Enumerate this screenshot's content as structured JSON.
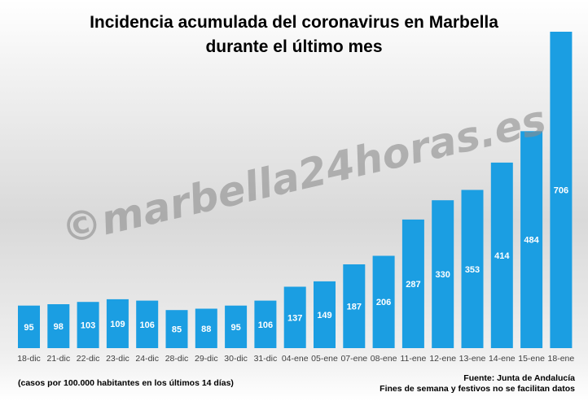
{
  "title": {
    "line1": "Incidencia acumulada del coronavirus en Marbella",
    "line2": "durante el último mes"
  },
  "watermark": "©marbella24horas.es",
  "footer": {
    "note": "(casos por 100.000 habitantes en los últimos 14 días)",
    "source": "Fuente: Junta de Andalucía",
    "note2": "Fines de semana y festivos no se facilitan datos"
  },
  "colors": {
    "bar": "#1b9ee2",
    "bar_label": "#ffffff",
    "tick": "#404040"
  },
  "chart_data": {
    "type": "bar",
    "title": "Incidencia acumulada del coronavirus en Marbella durante el último mes",
    "xlabel": "",
    "ylabel": "",
    "categories": [
      "18-dic",
      "21-dic",
      "22-dic",
      "23-dic",
      "24-dic",
      "28-dic",
      "29-dic",
      "30-dic",
      "31-dic",
      "04-ene",
      "05-ene",
      "07-ene",
      "08-ene",
      "11-ene",
      "12-ene",
      "13-ene",
      "14-ene",
      "15-ene",
      "18-ene"
    ],
    "values": [
      95,
      98,
      103,
      109,
      106,
      85,
      88,
      95,
      106,
      137,
      149,
      187,
      206,
      287,
      330,
      353,
      414,
      484,
      706
    ],
    "ylim": [
      0,
      706
    ],
    "grid": false,
    "legend": "none"
  }
}
